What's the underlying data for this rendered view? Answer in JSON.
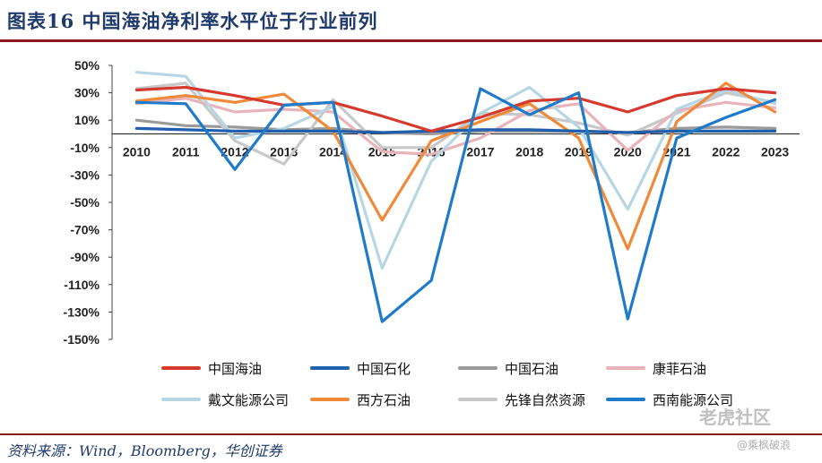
{
  "title": "图表16 中国海油净利率水平位于行业前列",
  "source": "资料来源：Wind，Bloomberg，华创证券",
  "watermark": {
    "brand": "老虎社区",
    "user": "@乘枫破浪"
  },
  "chart_data": {
    "type": "line",
    "x": [
      "2010",
      "2011",
      "2012",
      "2013",
      "2014",
      "2015",
      "2016",
      "2017",
      "2018",
      "2019",
      "2020",
      "2021",
      "2022",
      "2023"
    ],
    "yticks": [
      "50%",
      "30%",
      "10%",
      "-10%",
      "-30%",
      "-50%",
      "-70%",
      "-90%",
      "-110%",
      "-130%",
      "-150%"
    ],
    "ylim": [
      -150,
      50
    ],
    "legend_position": "bottom",
    "series": [
      {
        "name": "中国海油",
        "color": "#d63a2f",
        "values": [
          32,
          34,
          28,
          21,
          23,
          13,
          2,
          12,
          24,
          26,
          16,
          28,
          33,
          30
        ]
      },
      {
        "name": "中国石化",
        "color": "#1f5fae",
        "values": [
          4,
          3,
          2,
          2,
          2,
          1,
          2,
          3,
          3,
          2,
          1,
          2,
          2,
          2
        ]
      },
      {
        "name": "中国石油",
        "color": "#9a9a9a",
        "values": [
          10,
          6,
          5,
          3,
          4,
          1,
          0,
          2,
          2,
          2,
          1,
          4,
          5,
          4
        ]
      },
      {
        "name": "康菲石油",
        "color": "#e8b4ba",
        "values": [
          22,
          26,
          16,
          18,
          16,
          -13,
          -15,
          -3,
          17,
          22,
          -12,
          17,
          23,
          19
        ]
      },
      {
        "name": "戴文能源公司",
        "color": "#b7d6e3",
        "values": [
          45,
          42,
          -3,
          4,
          20,
          -98,
          -20,
          15,
          34,
          5,
          -55,
          18,
          32,
          22
        ]
      },
      {
        "name": "西方石油",
        "color": "#ee8a3a",
        "values": [
          24,
          28,
          23,
          29,
          2,
          -63,
          -5,
          9,
          22,
          -3,
          -84,
          9,
          37,
          16
        ]
      },
      {
        "name": "先锋自然资源",
        "color": "#c8c8c8",
        "values": [
          33,
          37,
          -5,
          -22,
          25,
          -10,
          -10,
          15,
          14,
          8,
          -1,
          15,
          30,
          23
        ]
      },
      {
        "name": "西南能源公司",
        "color": "#1f7bc9",
        "values": [
          23,
          22,
          -26,
          21,
          23,
          -137,
          -107,
          33,
          14,
          30,
          -135,
          -3,
          12,
          25
        ]
      }
    ]
  }
}
